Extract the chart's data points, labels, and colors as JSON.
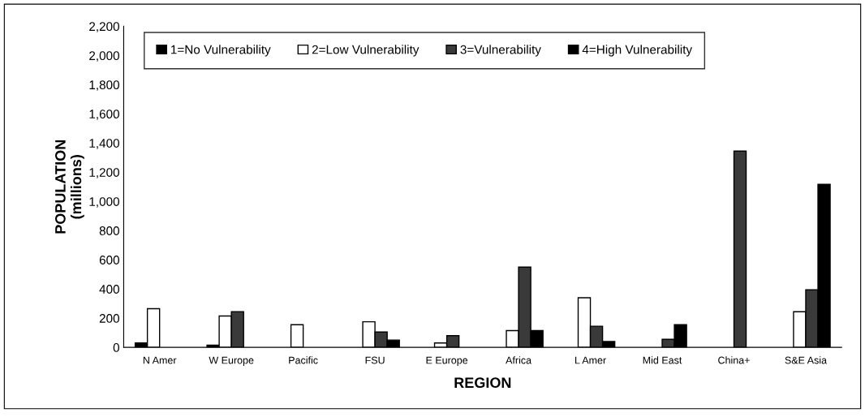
{
  "chart_data": {
    "type": "bar",
    "xlabel": "REGION",
    "ylabel": "POPULATION\n(millions)",
    "categories": [
      "N Amer",
      "W Europe",
      "Pacific",
      "FSU",
      "E Europe",
      "Africa",
      "L Amer",
      "Mid East",
      "China+",
      "S&E Asia"
    ],
    "series": [
      {
        "name": "1=No Vulnerability",
        "color": "#000000",
        "values": [
          30,
          15,
          null,
          null,
          null,
          null,
          null,
          null,
          null,
          null
        ]
      },
      {
        "name": "2=Low Vulnerability",
        "color": "#ffffff",
        "values": [
          265,
          215,
          155,
          175,
          30,
          115,
          340,
          null,
          null,
          244
        ]
      },
      {
        "name": "3=Vulnerability",
        "color": "#3a3a3a",
        "values": [
          null,
          245,
          null,
          105,
          80,
          550,
          145,
          55,
          1345,
          394
        ]
      },
      {
        "name": "4=High Vulnerability",
        "color": "#000000",
        "values": [
          null,
          null,
          null,
          50,
          null,
          115,
          40,
          155,
          null,
          1117
        ]
      }
    ],
    "ylim": [
      0,
      2200
    ],
    "yticks": [
      0,
      {
        "value": 200,
        "label": "200"
      },
      {
        "value": 400,
        "label": "400"
      },
      {
        "value": 600,
        "label": "600"
      },
      {
        "value": 800,
        "label": "800"
      },
      {
        "value": 1000,
        "label": "1,000"
      },
      {
        "value": 1200,
        "label": "1,200"
      },
      {
        "value": 1400,
        "label": "1,400"
      },
      {
        "value": 1600,
        "label": "1,600"
      },
      {
        "value": 1800,
        "label": "1,800"
      },
      {
        "value": 2000,
        "label": "2,000"
      },
      {
        "value": 2200,
        "label": "2,200"
      }
    ],
    "grid": false,
    "legend": "top"
  }
}
